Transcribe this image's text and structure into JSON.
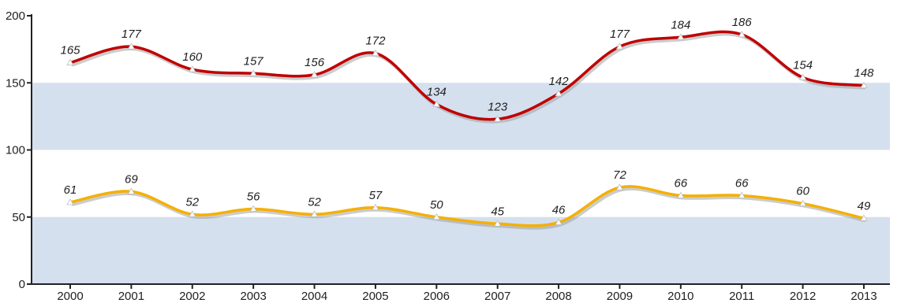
{
  "chart_data": {
    "type": "line",
    "categories": [
      "2000",
      "2001",
      "2002",
      "2003",
      "2004",
      "2005",
      "2006",
      "2007",
      "2008",
      "2009",
      "2010",
      "2011",
      "2012",
      "2013"
    ],
    "series": [
      {
        "values": [
          165,
          177,
          160,
          157,
          156,
          172,
          134,
          123,
          142,
          177,
          184,
          186,
          154,
          148
        ],
        "color": "#c00000"
      },
      {
        "values": [
          61,
          69,
          52,
          56,
          52,
          57,
          50,
          45,
          46,
          72,
          66,
          66,
          60,
          49
        ],
        "color": "#f5b000"
      }
    ],
    "ylim": [
      0,
      200
    ],
    "yticks": [
      "0",
      "50",
      "100",
      "150",
      "200"
    ],
    "bands": [
      [
        0,
        50
      ],
      [
        100,
        150
      ]
    ],
    "band_color": "#d5e0ee",
    "marker": "triangle",
    "legend": "none",
    "grid": false
  }
}
